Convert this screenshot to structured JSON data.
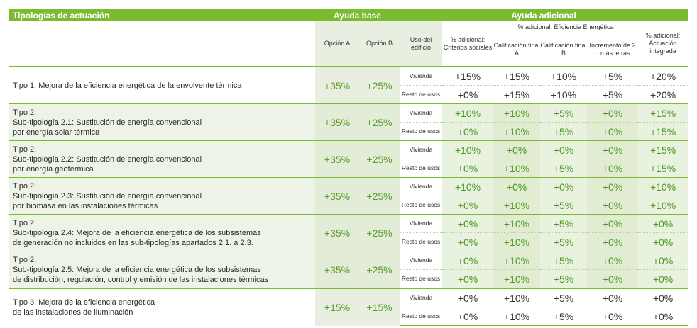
{
  "header": {
    "tipologias": "Tipologías de actuación",
    "ayuda_base": "Ayuda base",
    "ayuda_adicional": "Ayuda adicional"
  },
  "subheader": {
    "opcion_a": "Opción A",
    "opcion_b": "Opción B",
    "uso": "Uso del edificio",
    "criterios": "% adicional: Criterios sociales",
    "eficiencia_group": "% adicional: Eficiencia Energética",
    "calif_a": "Calificación final A",
    "calif_b": "Calificación final B",
    "incremento": "Incremento de 2 o más letras",
    "integrada": "% adicional: Actuación integrada"
  },
  "rows": [
    {
      "label": [
        "Tipo 1.   Mejora de la eficiencia energética de la envolvente térmica"
      ],
      "a": "+35%",
      "b": "+25%",
      "vivienda": {
        "use": "Vivienda",
        "vals": [
          "+15%",
          "+15%",
          "+10%",
          "+5%",
          "+20%"
        ]
      },
      "resto": {
        "use": "Resto de usos",
        "vals": [
          "+0%",
          "+15%",
          "+10%",
          "+5%",
          "+20%"
        ]
      }
    },
    {
      "label": [
        "Tipo 2.",
        "Sub-tipología 2.1: Sustitución de energía convencional",
        "por energía solar térmica"
      ],
      "a": "+35%",
      "b": "+25%",
      "vivienda": {
        "use": "Vivienda",
        "vals": [
          "+10%",
          "+10%",
          "+5%",
          "+0%",
          "+15%"
        ]
      },
      "resto": {
        "use": "Resto de usos",
        "vals": [
          "+0%",
          "+10%",
          "+5%",
          "+0%",
          "+15%"
        ]
      }
    },
    {
      "label": [
        "Tipo 2.",
        "Sub-tipología 2.2: Sustitución de energía convencional",
        "por energía geotérmica"
      ],
      "a": "+35%",
      "b": "+25%",
      "vivienda": {
        "use": "Vivienda",
        "vals": [
          "+10%",
          "+0%",
          "+0%",
          "+0%",
          "+15%"
        ]
      },
      "resto": {
        "use": "Resto de usos",
        "vals": [
          "+0%",
          "+10%",
          "+5%",
          "+0%",
          "+15%"
        ]
      }
    },
    {
      "label": [
        "Tipo 2.",
        "Sub-tipología 2.3: Sustitución de energía convencional",
        "por biomasa en las instalaciones térmicas"
      ],
      "a": "+35%",
      "b": "+25%",
      "vivienda": {
        "use": "Vivienda",
        "vals": [
          "+10%",
          "+0%",
          "+0%",
          "+0%",
          "+10%"
        ]
      },
      "resto": {
        "use": "Resto de usos",
        "vals": [
          "+0%",
          "+10%",
          "+5%",
          "+0%",
          "+10%"
        ]
      }
    },
    {
      "label": [
        "Tipo 2.",
        "Sub-tipología 2.4: Mejora de la eficiencia energética de los subsistemas",
        "de generación no incluidos en las sub-tipologías apartados 2.1. a 2.3."
      ],
      "a": "+35%",
      "b": "+25%",
      "vivienda": {
        "use": "Vivienda",
        "vals": [
          "+0%",
          "+10%",
          "+5%",
          "+0%",
          "+0%"
        ]
      },
      "resto": {
        "use": "Resto de usos",
        "vals": [
          "+0%",
          "+10%",
          "+5%",
          "+0%",
          "+0%"
        ]
      }
    },
    {
      "label": [
        "Tipo 2.",
        "Sub-tipología 2.5: Mejora de la eficiencia energética de los subsistemas",
        "de distribución, regulación, control y emisión de las instalaciones térmicas"
      ],
      "a": "+35%",
      "b": "+25%",
      "vivienda": {
        "use": "Vivienda",
        "vals": [
          "+0%",
          "+10%",
          "+5%",
          "+0%",
          "+0%"
        ]
      },
      "resto": {
        "use": "Resto de usos",
        "vals": [
          "+0%",
          "+10%",
          "+5%",
          "+0%",
          "+0%"
        ]
      }
    },
    {
      "label": [
        "Tipo 3.    Mejora de la eficiencia energética",
        "de las instalaciones de iluminación"
      ],
      "a": "+15%",
      "b": "+15%",
      "vivienda": {
        "use": "Vivienda",
        "vals": [
          "+0%",
          "+10%",
          "+5%",
          "+0%",
          "+0%"
        ]
      },
      "resto": {
        "use": "Resto de usos",
        "vals": [
          "+0%",
          "+10%",
          "+5%",
          "+0%",
          "+0%"
        ]
      }
    }
  ]
}
